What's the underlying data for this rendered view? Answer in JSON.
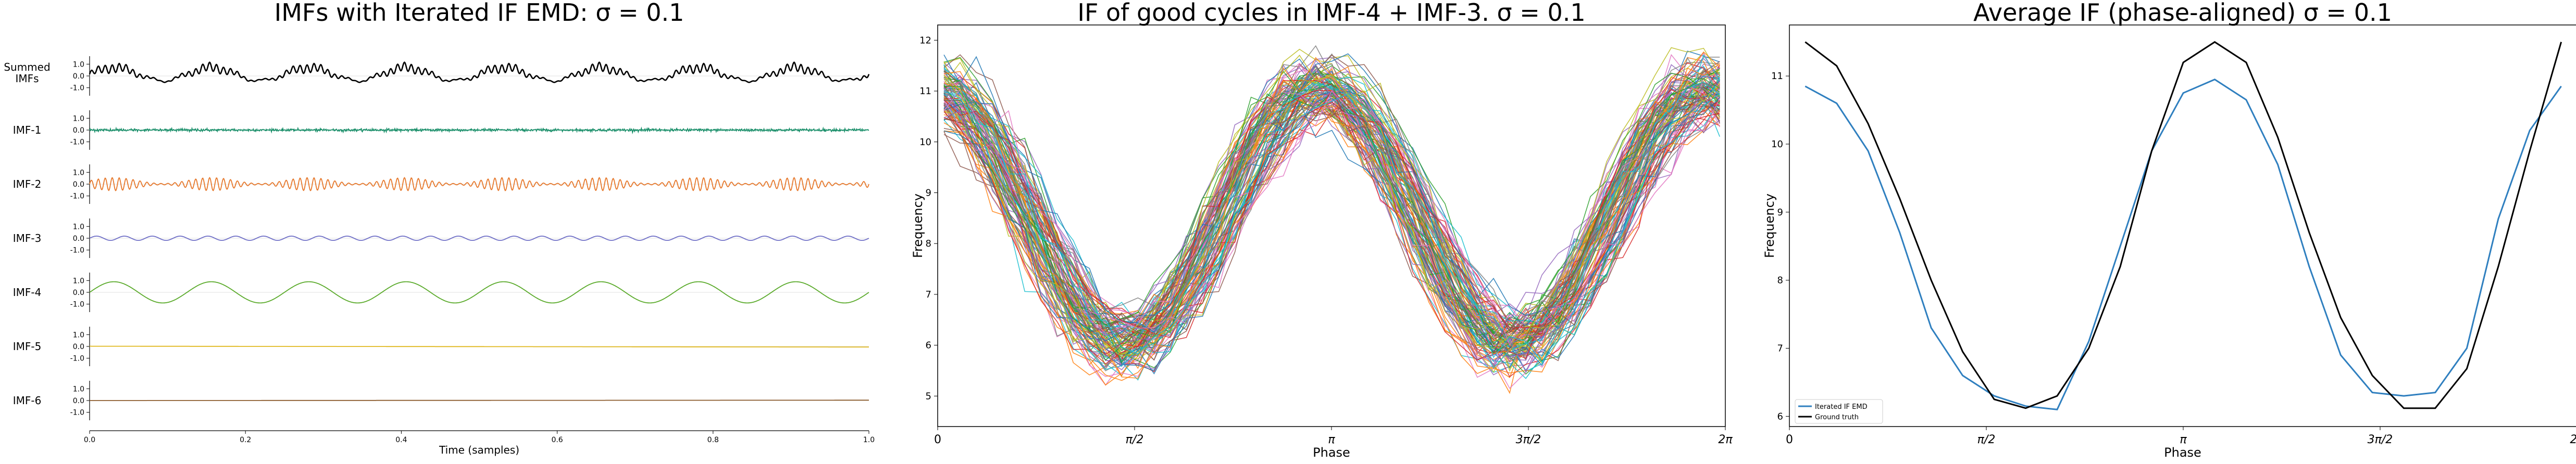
{
  "chart_data": [
    {
      "type": "line",
      "title": "IMFs with Iterated IF EMD: σ = 0.1",
      "xlabel": "Time (samples)",
      "xlim": [
        0.0,
        1.0
      ],
      "xticks": [
        "0.0",
        "0.2",
        "0.4",
        "0.6",
        "0.8",
        "1.0"
      ],
      "yticks": [
        "1.0",
        "0.0",
        "-1.0"
      ],
      "rows": [
        {
          "label": "Summed IMFs",
          "color": "#000000",
          "ylim": [
            -1.5,
            1.5
          ],
          "components": [
            {
              "amp": 0.55,
              "cycles": 8,
              "offset": 0.15
            },
            {
              "amp": 0.35,
              "cycles": 112,
              "envelope_cycles": 8
            },
            {
              "amp": 0.12,
              "cycles": 28
            }
          ]
        },
        {
          "label": "IMF-1",
          "color": "#1a8f6a",
          "ylim": [
            -1.5,
            1.5
          ],
          "components": [
            {
              "amp": 0.09,
              "cycles": 420,
              "noise": true
            }
          ]
        },
        {
          "label": "IMF-2",
          "color": "#e6772a",
          "ylim": [
            -1.5,
            1.5
          ],
          "components": [
            {
              "amp": 0.55,
              "cycles": 112,
              "envelope_cycles": 8
            }
          ]
        },
        {
          "label": "IMF-3",
          "color": "#6e6ec6",
          "ylim": [
            -1.5,
            1.5
          ],
          "components": [
            {
              "amp": 0.18,
              "cycles": 28
            }
          ]
        },
        {
          "label": "IMF-4",
          "color": "#5aaa2a",
          "ylim": [
            -1.5,
            1.5
          ],
          "components": [
            {
              "amp": 0.9,
              "cycles": 8
            }
          ]
        },
        {
          "label": "IMF-5",
          "color": "#e0b81e",
          "ylim": [
            -1.5,
            1.5
          ],
          "components": [
            {
              "amp": 0.0,
              "cycles": 1,
              "trend": [
                0.02,
                -0.05
              ]
            }
          ]
        },
        {
          "label": "IMF-6",
          "color": "#8b5a2b",
          "ylim": [
            -1.5,
            1.5
          ],
          "components": [
            {
              "amp": 0.0,
              "cycles": 1,
              "trend": [
                0.0,
                0.03
              ]
            }
          ]
        }
      ]
    },
    {
      "type": "line",
      "title": "IF of good cycles in IMF-4 + IMF-3. σ = 0.1",
      "xlabel": "Phase",
      "ylabel": "Frequency",
      "xlim": [
        0,
        6.2832
      ],
      "ylim": [
        4.4,
        12.3
      ],
      "xticks": [
        "0",
        "π/2",
        "π",
        "3π/2",
        "2π"
      ],
      "yticks": [
        5,
        6,
        7,
        8,
        9,
        10,
        11,
        12
      ],
      "n_cycles": 110,
      "center": 8.55,
      "amplitude": 2.55,
      "spread": 0.55
    },
    {
      "type": "line",
      "title": "Average IF (phase-aligned) σ = 0.1",
      "xlabel": "Phase",
      "ylabel": "Frequency",
      "xlim": [
        0,
        6.2832
      ],
      "ylim": [
        5.85,
        11.75
      ],
      "xticks": [
        "0",
        "π/2",
        "π",
        "3π/2",
        "2π"
      ],
      "yticks": [
        6,
        7,
        8,
        9,
        10,
        11
      ],
      "legend": "lower-left",
      "series": [
        {
          "name": "Iterated IF EMD",
          "color": "#2f7fbf",
          "x": [
            0.126,
            0.377,
            0.628,
            0.88,
            1.131,
            1.382,
            1.634,
            1.885,
            2.136,
            2.388,
            2.639,
            2.89,
            3.142,
            3.393,
            3.644,
            3.896,
            4.147,
            4.398,
            4.65,
            4.901,
            5.152,
            5.404,
            5.655,
            5.906,
            6.157
          ],
          "y": [
            10.85,
            10.6,
            9.9,
            8.7,
            7.3,
            6.6,
            6.3,
            6.15,
            6.1,
            7.1,
            8.5,
            9.9,
            10.75,
            10.95,
            10.65,
            9.7,
            8.2,
            6.9,
            6.35,
            6.3,
            6.35,
            7.0,
            8.9,
            10.2,
            10.85
          ]
        },
        {
          "name": "Ground truth",
          "color": "#000000",
          "x": [
            0.126,
            0.377,
            0.628,
            0.88,
            1.131,
            1.382,
            1.634,
            1.885,
            2.136,
            2.388,
            2.639,
            2.89,
            3.142,
            3.393,
            3.644,
            3.896,
            4.147,
            4.398,
            4.65,
            4.901,
            5.152,
            5.404,
            5.655,
            5.906,
            6.157
          ],
          "y": [
            11.5,
            11.15,
            10.3,
            9.2,
            8.0,
            6.95,
            6.25,
            6.12,
            6.3,
            7.0,
            8.2,
            9.9,
            11.2,
            11.5,
            11.2,
            10.1,
            8.7,
            7.45,
            6.6,
            6.12,
            6.12,
            6.7,
            8.2,
            9.9,
            11.5
          ]
        }
      ]
    }
  ]
}
